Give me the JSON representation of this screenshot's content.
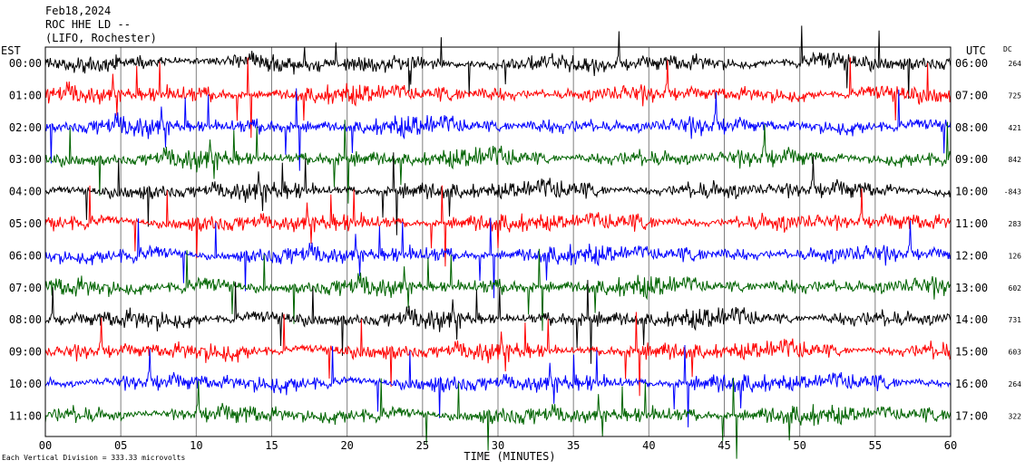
{
  "header": {
    "line1": "Feb18,2024",
    "line2": "ROC HHE LD --",
    "line3": "(LIFO, Rochester)"
  },
  "left_axis_label": "EST",
  "right_axis_label": "UTC",
  "dc_label": "DC",
  "footer": "Each Vertical Division =  333.33 microvolts",
  "chart_data": {
    "type": "line",
    "title": "Feb18,2024 ROC HHE LD -- (LIFO, Rochester)",
    "xlabel": "TIME (MINUTES)",
    "xlim": [
      0,
      60
    ],
    "x_ticks": [
      "00",
      "05",
      "10",
      "15",
      "20",
      "25",
      "30",
      "35",
      "40",
      "45",
      "50",
      "55",
      "60"
    ],
    "grid": "vertical lines every 5 minutes",
    "colors": [
      "#000000",
      "#ff0000",
      "#0000ff",
      "#006400"
    ],
    "rows": [
      {
        "est": "00:00",
        "utc": "06:00",
        "dc": "264",
        "color": "#000000"
      },
      {
        "est": "01:00",
        "utc": "07:00",
        "dc": "725",
        "color": "#ff0000"
      },
      {
        "est": "02:00",
        "utc": "08:00",
        "dc": "421",
        "color": "#0000ff"
      },
      {
        "est": "03:00",
        "utc": "09:00",
        "dc": "842",
        "color": "#006400"
      },
      {
        "est": "04:00",
        "utc": "10:00",
        "dc": "-843",
        "color": "#000000"
      },
      {
        "est": "05:00",
        "utc": "11:00",
        "dc": "283",
        "color": "#ff0000"
      },
      {
        "est": "06:00",
        "utc": "12:00",
        "dc": "126",
        "color": "#0000ff"
      },
      {
        "est": "07:00",
        "utc": "13:00",
        "dc": "602",
        "color": "#006400"
      },
      {
        "est": "08:00",
        "utc": "14:00",
        "dc": "731",
        "color": "#000000"
      },
      {
        "est": "09:00",
        "utc": "15:00",
        "dc": "603",
        "color": "#ff0000"
      },
      {
        "est": "10:00",
        "utc": "16:00",
        "dc": "264",
        "color": "#0000ff"
      },
      {
        "est": "11:00",
        "utc": "17:00",
        "dc": "322",
        "color": "#006400"
      }
    ]
  }
}
